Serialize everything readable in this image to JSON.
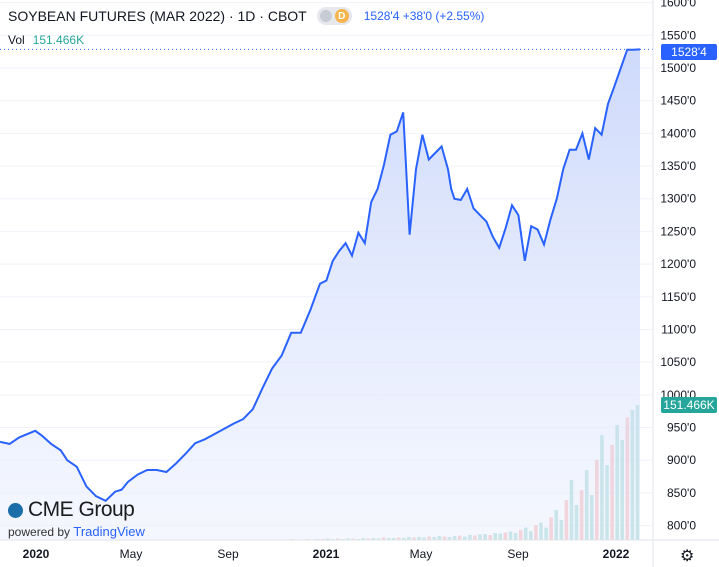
{
  "header": {
    "title": "SOYBEAN FUTURES (MAR 2022) · 1D · CBOT",
    "badge": "D",
    "quote": "1528'4 +38'0 (+2.55%)"
  },
  "volume": {
    "label": "Vol",
    "value": "151.466K",
    "color": "#26a69a"
  },
  "branding": {
    "logo": "CME Group",
    "powered_by": "powered by",
    "powered_name": "TradingView"
  },
  "colors": {
    "line": "#2962ff",
    "fill": "#dfe7fd",
    "vol_up": "#26a69a",
    "vol_down": "#ef5350"
  },
  "chart_data": {
    "type": "area",
    "x_axis": {
      "labels": [
        "2020",
        "May",
        "Sep",
        "2021",
        "May",
        "Sep",
        "2022"
      ]
    },
    "y_axis": {
      "ticks": [
        "800'0",
        "850'0",
        "900'0",
        "950'0",
        "1000'0",
        "1050'0",
        "1100'0",
        "1150'0",
        "1200'0",
        "1250'0",
        "1300'0",
        "1350'0",
        "1400'0",
        "1450'0",
        "1500'0",
        "1550'0",
        "1600'0"
      ],
      "tick_values": [
        800,
        850,
        900,
        950,
        1000,
        1050,
        1100,
        1150,
        1200,
        1250,
        1300,
        1350,
        1400,
        1450,
        1500,
        1550,
        1600
      ],
      "range": [
        778,
        1604
      ]
    },
    "price_label": "1528'4",
    "price_value": 1528.5,
    "volume_label": "151.466K",
    "series": [
      {
        "x": [
          0,
          0.015,
          0.03,
          0.045,
          0.055,
          0.065,
          0.08,
          0.095,
          0.105,
          0.12,
          0.135,
          0.15,
          0.165,
          0.18,
          0.19,
          0.2,
          0.215,
          0.23,
          0.245,
          0.26,
          0.275,
          0.29,
          0.305,
          0.32,
          0.335,
          0.35,
          0.365,
          0.38,
          0.395,
          0.41,
          0.425,
          0.44,
          0.455,
          0.47,
          0.485,
          0.5,
          0.51,
          0.52,
          0.53,
          0.54,
          0.55,
          0.56,
          0.57,
          0.58,
          0.59,
          0.6,
          0.61,
          0.62,
          0.63,
          0.64,
          0.65,
          0.66,
          0.67,
          0.68,
          0.69,
          0.7,
          0.705,
          0.71,
          0.72,
          0.73,
          0.74,
          0.75,
          0.76,
          0.77,
          0.78,
          0.79,
          0.8,
          0.81,
          0.82,
          0.83,
          0.84,
          0.85,
          0.86,
          0.87,
          0.88,
          0.89,
          0.9,
          0.91,
          0.92,
          0.93,
          0.94,
          0.95,
          0.96,
          0.97,
          0.98,
          0.99,
          1.0
        ],
        "y": [
          928,
          925,
          935,
          941,
          945,
          938,
          925,
          915,
          900,
          890,
          860,
          845,
          838,
          852,
          855,
          867,
          878,
          885,
          885,
          882,
          895,
          910,
          926,
          932,
          940,
          948,
          956,
          963,
          978,
          1010,
          1040,
          1060,
          1095,
          1095,
          1130,
          1170,
          1175,
          1205,
          1220,
          1232,
          1213,
          1248,
          1232,
          1295,
          1315,
          1352,
          1398,
          1403,
          1432,
          1245,
          1345,
          1398,
          1360,
          1370,
          1380,
          1345,
          1315,
          1300,
          1298,
          1315,
          1285,
          1275,
          1265,
          1242,
          1225,
          1255,
          1290,
          1275,
          1205,
          1258,
          1253,
          1230,
          1268,
          1300,
          1345,
          1375,
          1375,
          1400,
          1360,
          1408,
          1398,
          1445,
          1472,
          1500,
          1528,
          1528,
          1528.5
        ]
      }
    ],
    "volume_bars": [
      0,
      0,
      0,
      0,
      0,
      0,
      0,
      0,
      0,
      0,
      0,
      0,
      0,
      0,
      0,
      0,
      0,
      0,
      0,
      0,
      0,
      0,
      0,
      0,
      0,
      0,
      0,
      0,
      0,
      0,
      0,
      0,
      0,
      0,
      0,
      0,
      1,
      0,
      1,
      0,
      0,
      1,
      0,
      1,
      1,
      0,
      1,
      0,
      1,
      1,
      0,
      1,
      1,
      1,
      0,
      1,
      1,
      2,
      1,
      1,
      2,
      1,
      2,
      2,
      3,
      2,
      3,
      2,
      3,
      3,
      2,
      4,
      3,
      4,
      3,
      5,
      4,
      4,
      5,
      4,
      6,
      5,
      6,
      5,
      7,
      6,
      8,
      7,
      6,
      8,
      9,
      7,
      10,
      9,
      11,
      12,
      10,
      14,
      13,
      15,
      17,
      14,
      20,
      25,
      18,
      30,
      35,
      25,
      45,
      60,
      40,
      80,
      120,
      70,
      100,
      140,
      90,
      160,
      210,
      150,
      190,
      230,
      200,
      245,
      260,
      270
    ]
  }
}
